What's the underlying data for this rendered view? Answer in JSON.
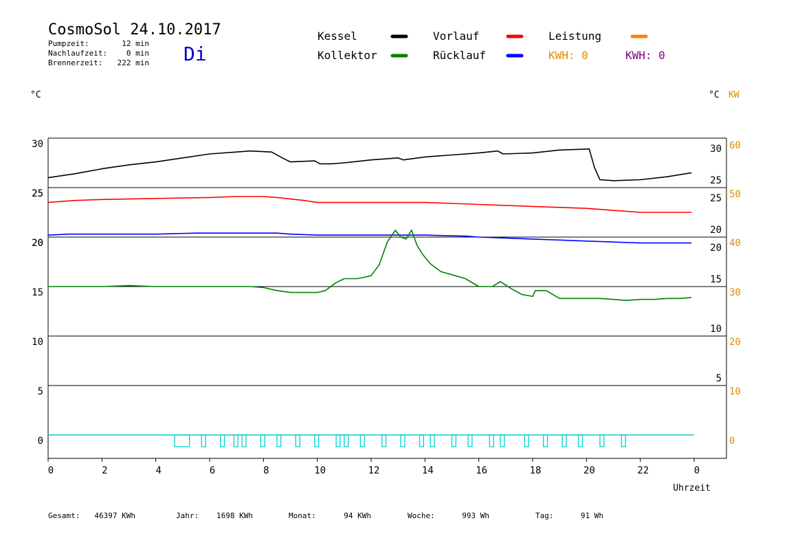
{
  "header": {
    "title": "CosmoSol 24.10.2017",
    "weekday": "Di",
    "stats": [
      {
        "label": "Pumpzeit:",
        "value": "12 min"
      },
      {
        "label": "Nachlaufzeit:",
        "value": "0 min"
      },
      {
        "label": "Brennerzeit:",
        "value": "222 min"
      }
    ]
  },
  "legend": {
    "items": [
      {
        "label": "Kessel",
        "color": "#000000"
      },
      {
        "label": "Vorlauf",
        "color": "#ff0000"
      },
      {
        "label": "Leistung",
        "color": "#ff8000"
      },
      {
        "label": "Kollektor",
        "color": "#008000"
      },
      {
        "label": "Rücklauf",
        "color": "#0000ff"
      }
    ],
    "kwh": [
      {
        "text": "KWH: 0",
        "color": "#e08a00"
      },
      {
        "text": "KWH: 0",
        "color": "#800080"
      }
    ]
  },
  "axes": {
    "left_unit": "°C",
    "right_unit": "°C",
    "right_unit2": "KW",
    "xlabel": "Uhrzeit"
  },
  "footer": {
    "items": [
      {
        "label": "Gesamt:",
        "value": "46397 KWh"
      },
      {
        "label": "Jahr:",
        "value": "1698 KWh"
      },
      {
        "label": "Monat:",
        "value": "94 KWh"
      },
      {
        "label": "Woche:",
        "value": "993 Wh"
      },
      {
        "label": "Tag:",
        "value": "91 Wh"
      }
    ]
  },
  "chart_data": {
    "type": "line",
    "title": "CosmoSol 24.10.2017",
    "xlabel": "Uhrzeit",
    "xlim": [
      0,
      24
    ],
    "x_ticks": [
      "0",
      "2",
      "4",
      "6",
      "8",
      "10",
      "12",
      "14",
      "16",
      "18",
      "20",
      "22",
      "0"
    ],
    "grid": true,
    "panels": [
      {
        "name": "kessel",
        "ylim": [
          25,
          30
        ],
        "left_ticks": [
          {
            "v": 30,
            "label": "30"
          },
          {
            "v": 25,
            "label": "25"
          }
        ],
        "right_ticks": [
          {
            "v": 30,
            "label": "30"
          },
          {
            "v": 25,
            "label": "25"
          }
        ],
        "series": [
          {
            "name": "Kessel",
            "color": "#000000",
            "x": [
              0,
              1,
              2,
              3,
              4,
              5,
              6,
              7,
              7.5,
              8.3,
              8.7,
              9,
              9.9,
              10.1,
              10.5,
              11,
              12,
              13,
              13.2,
              14,
              15,
              16,
              16.7,
              16.9,
              18,
              19,
              20.1,
              20.3,
              20.5,
              21,
              22,
              23,
              23.9
            ],
            "y": [
              26,
              26.4,
              26.9,
              27.3,
              27.6,
              28,
              28.4,
              28.6,
              28.7,
              28.6,
              28,
              27.6,
              27.7,
              27.4,
              27.4,
              27.5,
              27.8,
              28,
              27.8,
              28.1,
              28.3,
              28.5,
              28.7,
              28.4,
              28.5,
              28.8,
              28.9,
              27,
              25.8,
              25.7,
              25.8,
              26.1,
              26.5
            ]
          }
        ]
      },
      {
        "name": "vorlauf",
        "ylim": [
          20,
          25
        ],
        "left_ticks": [
          {
            "v": 25,
            "label": "25"
          },
          {
            "v": 20,
            "label": "20"
          }
        ],
        "right_ticks": [
          {
            "v": 25,
            "label": "25"
          },
          {
            "v": 20,
            "label": "20"
          }
        ],
        "series": [
          {
            "name": "Vorlauf",
            "color": "#ff0000",
            "x": [
              0,
              1,
              2,
              4,
              6,
              7,
              8,
              8.5,
              9.5,
              10,
              11,
              12,
              13,
              14,
              15,
              16,
              17,
              18,
              19,
              20,
              20.5,
              21.5,
              22,
              23,
              23.9
            ],
            "y": [
              23.5,
              23.7,
              23.8,
              23.9,
              24,
              24.1,
              24.1,
              24,
              23.7,
              23.5,
              23.5,
              23.5,
              23.5,
              23.5,
              23.4,
              23.3,
              23.2,
              23.1,
              23,
              22.9,
              22.8,
              22.6,
              22.5,
              22.5,
              22.5
            ]
          },
          {
            "name": "Rücklauf",
            "color": "#0000ff",
            "x": [
              0,
              0.8,
              2,
              4,
              5.5,
              7,
              8.5,
              9,
              10,
              12,
              14,
              15.5,
              16,
              17,
              18,
              19,
              20,
              21,
              22,
              23,
              23.9
            ],
            "y": [
              20.2,
              20.3,
              20.3,
              20.3,
              20.4,
              20.4,
              20.4,
              20.3,
              20.2,
              20.2,
              20.2,
              20.1,
              20,
              19.9,
              19.8,
              19.7,
              19.6,
              19.5,
              19.4,
              19.4,
              19.4
            ]
          }
        ]
      },
      {
        "name": "kollektor",
        "ylim": [
          15,
          20
        ],
        "left_ticks": [
          {
            "v": 20,
            "label": "20"
          },
          {
            "v": 15,
            "label": "15"
          }
        ],
        "right_ticks": [
          {
            "v": 20,
            "label": "20"
          },
          {
            "v": 15,
            "label": "15"
          }
        ],
        "right2_ticks": [
          {
            "v": 20,
            "label": "40"
          },
          {
            "v": 15,
            "label": "30"
          }
        ],
        "series": [
          {
            "name": "Kollektor",
            "color": "#008000",
            "x": [
              0,
              1,
              2,
              3,
              4,
              5,
              6,
              7,
              7.5,
              8,
              8.5,
              9,
              9.5,
              10,
              10.3,
              10.7,
              11,
              11.5,
              12,
              12.3,
              12.6,
              12.9,
              13.1,
              13.3,
              13.5,
              13.7,
              13.9,
              14.2,
              14.6,
              15,
              15.5,
              16,
              16.5,
              16.8,
              17.2,
              17.6,
              18,
              18.1,
              18.5,
              19,
              19.5,
              20,
              20.5,
              21,
              21.5,
              22,
              22.5,
              23,
              23.5,
              23.9
            ],
            "y": [
              15,
              15,
              15,
              15.1,
              15,
              15,
              15,
              15,
              15,
              14.9,
              14.6,
              14.4,
              14.4,
              14.4,
              14.6,
              15.4,
              15.8,
              15.8,
              16.1,
              17.2,
              19.5,
              20.7,
              20,
              19.8,
              20.7,
              19.2,
              18.3,
              17.3,
              16.5,
              16.2,
              15.8,
              15,
              15,
              15.5,
              14.8,
              14.2,
              14,
              14.6,
              14.6,
              13.8,
              13.8,
              13.8,
              13.8,
              13.7,
              13.6,
              13.7,
              13.7,
              13.8,
              13.8,
              13.9
            ]
          }
        ]
      },
      {
        "name": "empty-1",
        "ylim": [
          10,
          15
        ],
        "left_ticks": [
          {
            "v": 10,
            "label": "10"
          }
        ],
        "right_ticks": [
          {
            "v": 10,
            "label": "10"
          }
        ],
        "right2_ticks": [
          {
            "v": 10,
            "label": "20"
          }
        ],
        "series": []
      },
      {
        "name": "empty-2",
        "ylim": [
          5,
          10
        ],
        "left_ticks": [
          {
            "v": 5,
            "label": "5"
          }
        ],
        "right_ticks": [
          {
            "v": 5,
            "label": "5"
          }
        ],
        "right2_ticks": [
          {
            "v": 5,
            "label": "10"
          }
        ],
        "series": []
      },
      {
        "name": "leistung",
        "ylim": [
          0,
          5
        ],
        "left_ticks": [
          {
            "v": 0,
            "label": "0"
          }
        ],
        "right_ticks": [],
        "right2_ticks": [
          {
            "v": 0,
            "label": "0"
          }
        ],
        "series": []
      }
    ],
    "pump_line": {
      "color": "#00d0d0",
      "y": 0
    },
    "pump_pulses": [
      {
        "start": 4.7,
        "end": 5.25
      },
      {
        "start": 5.7,
        "end": 5.85
      },
      {
        "start": 6.4,
        "end": 6.55
      },
      {
        "start": 6.9,
        "end": 7.05
      },
      {
        "start": 7.2,
        "end": 7.35
      },
      {
        "start": 7.9,
        "end": 8.05
      },
      {
        "start": 8.5,
        "end": 8.65
      },
      {
        "start": 9.2,
        "end": 9.35
      },
      {
        "start": 9.9,
        "end": 10.05
      },
      {
        "start": 10.7,
        "end": 10.85
      },
      {
        "start": 11.0,
        "end": 11.15
      },
      {
        "start": 11.6,
        "end": 11.75
      },
      {
        "start": 12.4,
        "end": 12.55
      },
      {
        "start": 13.1,
        "end": 13.25
      },
      {
        "start": 13.8,
        "end": 13.95
      },
      {
        "start": 14.2,
        "end": 14.35
      },
      {
        "start": 15.0,
        "end": 15.15
      },
      {
        "start": 15.6,
        "end": 15.75
      },
      {
        "start": 16.4,
        "end": 16.55
      },
      {
        "start": 16.8,
        "end": 16.95
      },
      {
        "start": 17.7,
        "end": 17.85
      },
      {
        "start": 18.4,
        "end": 18.55
      },
      {
        "start": 19.1,
        "end": 19.25
      },
      {
        "start": 19.7,
        "end": 19.85
      },
      {
        "start": 20.5,
        "end": 20.65
      },
      {
        "start": 21.3,
        "end": 21.45
      }
    ]
  }
}
